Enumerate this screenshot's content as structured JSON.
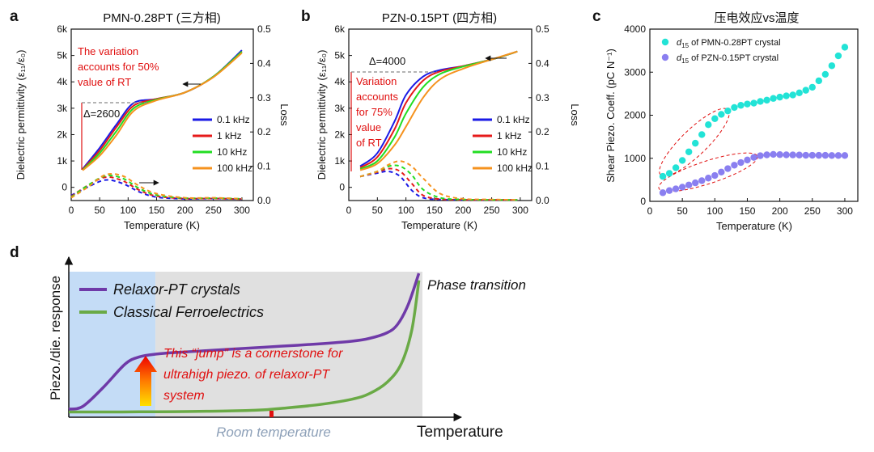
{
  "panels": {
    "a": {
      "label": "a",
      "title": "PMN-0.28PT (三方相)",
      "ylabel": "Dielectric permittivity (ε₁₁/ε₀)",
      "y2label": "Loss",
      "xlabel": "Temperature (K)",
      "annot": "The variation accounts for 50% value of RT",
      "annot_lines": [
        "The variation",
        "accounts for 50%",
        "value of RT"
      ],
      "delta": "Δ=2600"
    },
    "b": {
      "label": "b",
      "title": "PZN-0.15PT (四方相)",
      "ylabel": "Dielectric permittivity (ε₁₁/ε₀)",
      "y2label": "Loss",
      "xlabel": "Temperature (K)",
      "annot": "Variation accounts for 75% value of RT",
      "annot_lines": [
        "Variation",
        "accounts",
        "for 75%",
        "value",
        "of RT"
      ],
      "delta": "Δ=4000"
    },
    "c": {
      "label": "c",
      "title": "压电效应vs温度",
      "ylabel": "Shear Piezo. Coeff. (pC N⁻¹)",
      "xlabel": "Temperature (K)"
    },
    "d": {
      "label": "d",
      "ylabel": "Piezo./die. response",
      "xlabel": "Temperature",
      "room": "Room temperature",
      "phase": "Phase transition",
      "annot_lines": [
        "This “jump” is a cornerstone for",
        "ultrahigh piezo. of relaxor-PT",
        "system"
      ],
      "legend": [
        "Relaxor-PT crystals",
        "Classical Ferroelectrics"
      ]
    }
  },
  "chart_data": [
    {
      "id": "a",
      "type": "line",
      "title": "PMN-0.28PT (三方相)",
      "xlabel": "Temperature (K)",
      "ylabel": "Dielectric permittivity (ε₁₁/ε₀)",
      "y2label": "Loss",
      "xlim": [
        0,
        320
      ],
      "ylim": [
        -500,
        6000
      ],
      "y2lim": [
        0,
        0.5
      ],
      "xticks": [
        0,
        50,
        100,
        150,
        200,
        250,
        300
      ],
      "yticks": [
        0,
        1000,
        2000,
        3000,
        4000,
        5000,
        6000
      ],
      "ytick_labels": [
        "0",
        "1k",
        "2k",
        "3k",
        "4k",
        "5k",
        "6k"
      ],
      "y2ticks": [
        0.0,
        0.1,
        0.2,
        0.3,
        0.4,
        0.5
      ],
      "legend_position": "right-center",
      "series": [
        {
          "name": "0.1 kHz",
          "color": "#1a1ae6",
          "x": [
            20,
            50,
            80,
            110,
            150,
            200,
            250,
            300
          ],
          "permittivity": [
            700,
            1500,
            2400,
            3200,
            3350,
            3600,
            4200,
            5200
          ],
          "loss_x": [
            0,
            30,
            60,
            90,
            120,
            150,
            200,
            250,
            300
          ],
          "loss": [
            0.015,
            0.04,
            0.06,
            0.05,
            0.025,
            0.01,
            0.005,
            0.006,
            0.004
          ]
        },
        {
          "name": "1 kHz",
          "color": "#e61a1a",
          "x": [
            20,
            50,
            80,
            110,
            150,
            200,
            250,
            300
          ],
          "permittivity": [
            680,
            1400,
            2300,
            3100,
            3350,
            3600,
            4200,
            5150
          ],
          "loss_x": [
            0,
            30,
            60,
            90,
            120,
            150,
            200,
            250,
            300
          ],
          "loss": [
            0.012,
            0.045,
            0.068,
            0.058,
            0.03,
            0.013,
            0.006,
            0.006,
            0.004
          ]
        },
        {
          "name": "10 kHz",
          "color": "#22dd22",
          "x": [
            20,
            50,
            80,
            110,
            150,
            200,
            250,
            300
          ],
          "permittivity": [
            660,
            1300,
            2150,
            3000,
            3330,
            3600,
            4200,
            5150
          ],
          "loss_x": [
            0,
            30,
            60,
            90,
            120,
            150,
            200,
            250,
            300
          ],
          "loss": [
            0.01,
            0.045,
            0.072,
            0.065,
            0.035,
            0.016,
            0.007,
            0.007,
            0.005
          ]
        },
        {
          "name": "100 kHz",
          "color": "#f5921e",
          "x": [
            20,
            50,
            80,
            110,
            150,
            200,
            250,
            300
          ],
          "permittivity": [
            640,
            1200,
            2000,
            2900,
            3300,
            3600,
            4180,
            5100
          ],
          "loss_x": [
            0,
            30,
            60,
            90,
            120,
            150,
            200,
            250,
            300
          ],
          "loss": [
            0.008,
            0.04,
            0.075,
            0.072,
            0.042,
            0.02,
            0.008,
            0.008,
            0.005
          ]
        }
      ]
    },
    {
      "id": "b",
      "type": "line",
      "title": "PZN-0.15PT (四方相)",
      "xlabel": "Temperature (K)",
      "ylabel": "Dielectric permittivity (ε₁₁/ε₀)",
      "y2label": "Loss",
      "xlim": [
        0,
        320
      ],
      "ylim": [
        -500,
        6000
      ],
      "y2lim": [
        0,
        0.5
      ],
      "xticks": [
        0,
        50,
        100,
        150,
        200,
        250,
        300
      ],
      "yticks": [
        0,
        1000,
        2000,
        3000,
        4000,
        5000,
        6000
      ],
      "ytick_labels": [
        "0",
        "1k",
        "2k",
        "3k",
        "4k",
        "5k",
        "6k"
      ],
      "y2ticks": [
        0.0,
        0.1,
        0.2,
        0.3,
        0.4,
        0.5
      ],
      "legend_position": "right-center",
      "series": [
        {
          "name": "0.1 kHz",
          "color": "#1a1ae6",
          "x": [
            20,
            50,
            80,
            100,
            130,
            160,
            200,
            250,
            295
          ],
          "permittivity": [
            800,
            1300,
            2500,
            3500,
            4200,
            4450,
            4600,
            4850,
            5150
          ],
          "loss_x": [
            20,
            50,
            70,
            90,
            110,
            130,
            160,
            200,
            250,
            295
          ],
          "loss": [
            0.07,
            0.08,
            0.085,
            0.07,
            0.03,
            0.008,
            0.003,
            0.002,
            0.002,
            0.002
          ]
        },
        {
          "name": "1 kHz",
          "color": "#e61a1a",
          "x": [
            20,
            50,
            80,
            100,
            130,
            160,
            200,
            250,
            295
          ],
          "permittivity": [
            750,
            1150,
            2200,
            3200,
            4050,
            4400,
            4600,
            4850,
            5150
          ],
          "loss_x": [
            20,
            50,
            70,
            90,
            110,
            130,
            160,
            200,
            250,
            295
          ],
          "loss": [
            0.07,
            0.083,
            0.093,
            0.085,
            0.05,
            0.015,
            0.004,
            0.002,
            0.002,
            0.002
          ]
        },
        {
          "name": "10 kHz",
          "color": "#22dd22",
          "x": [
            20,
            50,
            80,
            100,
            130,
            160,
            200,
            250,
            295
          ],
          "permittivity": [
            700,
            1000,
            1900,
            2800,
            3800,
            4300,
            4580,
            4850,
            5150
          ],
          "loss_x": [
            20,
            50,
            70,
            90,
            110,
            130,
            160,
            200,
            250,
            295
          ],
          "loss": [
            0.07,
            0.085,
            0.1,
            0.1,
            0.075,
            0.032,
            0.008,
            0.003,
            0.002,
            0.002
          ]
        },
        {
          "name": "100 kHz",
          "color": "#f5921e",
          "x": [
            20,
            50,
            80,
            100,
            130,
            160,
            200,
            250,
            295
          ],
          "permittivity": [
            650,
            900,
            1600,
            2300,
            3400,
            4100,
            4500,
            4850,
            5150
          ],
          "loss_x": [
            20,
            50,
            70,
            90,
            110,
            130,
            160,
            200,
            250,
            295
          ],
          "loss": [
            0.07,
            0.085,
            0.105,
            0.115,
            0.1,
            0.065,
            0.02,
            0.005,
            0.003,
            0.002
          ]
        }
      ]
    },
    {
      "id": "c",
      "type": "scatter",
      "title": "压电效应vs温度",
      "xlabel": "Temperature (K)",
      "ylabel": "Shear Piezo. Coeff. (pC N⁻¹)",
      "xlim": [
        0,
        320
      ],
      "ylim": [
        0,
        4000
      ],
      "xticks": [
        0,
        50,
        100,
        150,
        200,
        250,
        300
      ],
      "yticks": [
        0,
        1000,
        2000,
        3000,
        4000
      ],
      "legend_position": "top-left",
      "series": [
        {
          "name": "d15 of PMN-0.28PT crystal",
          "legend_sub": "15",
          "legend_rest": " of PMN-0.28PT crystal",
          "color": "#22e3d6",
          "x": [
            20,
            30,
            40,
            50,
            60,
            70,
            80,
            90,
            100,
            110,
            120,
            130,
            140,
            150,
            160,
            170,
            180,
            190,
            200,
            210,
            220,
            230,
            240,
            250,
            260,
            270,
            280,
            290,
            300
          ],
          "values": [
            580,
            650,
            780,
            950,
            1150,
            1350,
            1550,
            1780,
            1920,
            2020,
            2100,
            2180,
            2230,
            2260,
            2280,
            2320,
            2350,
            2390,
            2420,
            2450,
            2470,
            2520,
            2580,
            2650,
            2800,
            2950,
            3150,
            3380,
            3580
          ]
        },
        {
          "name": "d15 of PZN-0.15PT crystal",
          "legend_sub": "15",
          "legend_rest": " of PZN-0.15PT crystal",
          "color": "#8a7ff0",
          "x": [
            20,
            30,
            40,
            50,
            60,
            70,
            80,
            90,
            100,
            110,
            120,
            130,
            140,
            150,
            160,
            170,
            180,
            190,
            200,
            210,
            220,
            230,
            240,
            250,
            260,
            270,
            280,
            290,
            300
          ],
          "values": [
            200,
            250,
            290,
            330,
            380,
            430,
            480,
            540,
            600,
            680,
            760,
            840,
            900,
            960,
            1020,
            1060,
            1080,
            1090,
            1085,
            1080,
            1078,
            1075,
            1070,
            1070,
            1068,
            1068,
            1065,
            1065,
            1065
          ]
        }
      ]
    },
    {
      "id": "d",
      "type": "line",
      "xlabel": "Temperature",
      "ylabel": "Piezo./die. response",
      "xlim": [
        0,
        1
      ],
      "ylim": [
        0,
        1
      ],
      "series": [
        {
          "name": "Relaxor-PT crystals",
          "color": "#6f3aa8",
          "x": [
            0,
            0.04,
            0.1,
            0.16,
            0.2,
            0.25,
            0.3,
            0.4,
            0.5,
            0.6,
            0.7,
            0.8,
            0.85,
            0.9,
            0.93,
            0.96,
            0.99
          ],
          "values": [
            0.04,
            0.06,
            0.2,
            0.36,
            0.41,
            0.43,
            0.44,
            0.455,
            0.47,
            0.485,
            0.5,
            0.52,
            0.54,
            0.58,
            0.64,
            0.78,
            1.0
          ]
        },
        {
          "name": "Classical Ferroelectrics",
          "color": "#6aaa46",
          "x": [
            0,
            0.1,
            0.2,
            0.3,
            0.4,
            0.5,
            0.55,
            0.6,
            0.7,
            0.8,
            0.85,
            0.9,
            0.94,
            0.97,
            0.99
          ],
          "values": [
            0.02,
            0.02,
            0.021,
            0.022,
            0.025,
            0.03,
            0.035,
            0.045,
            0.07,
            0.11,
            0.15,
            0.23,
            0.36,
            0.6,
            0.95
          ]
        }
      ],
      "regions": [
        {
          "from": 0,
          "to": 0.245,
          "color": "#c4dcf6"
        },
        {
          "from": 0.245,
          "to": 1,
          "color": "#e0e0e0"
        }
      ]
    }
  ]
}
